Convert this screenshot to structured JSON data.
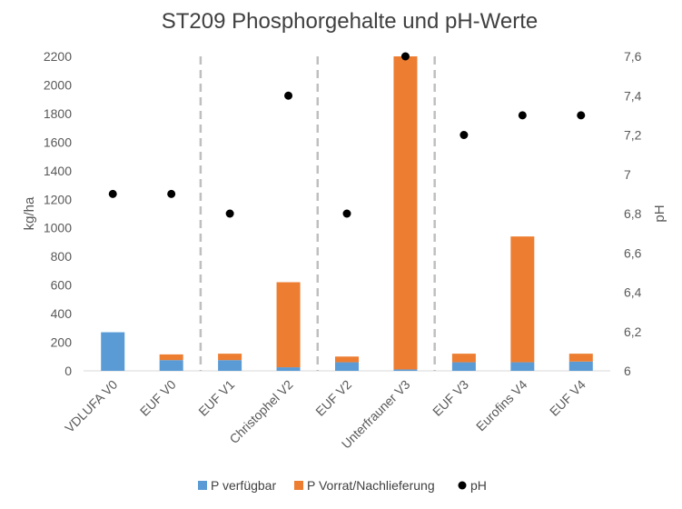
{
  "chart_data": {
    "type": "bar",
    "title": "ST209 Phosphorgehalte und pH-Werte",
    "ylabel": "kg/ha",
    "y2label": "pH",
    "ylim": [
      0,
      2200
    ],
    "y2lim": [
      6,
      7.6
    ],
    "yticks": [
      "0",
      "200",
      "400",
      "600",
      "800",
      "1000",
      "1200",
      "1400",
      "1600",
      "1800",
      "2000",
      "2200"
    ],
    "y2ticks": [
      "6",
      "6,2",
      "6,4",
      "6,6",
      "6,8",
      "7",
      "7,2",
      "7,4",
      "7,6"
    ],
    "categories": [
      "VDLUFA V0",
      "EUF V0",
      "EUF V1",
      "Christophel V2",
      "EUF V2",
      "Unterfrauner V3",
      "EUF V3",
      "Eurofins V4",
      "EUF V4"
    ],
    "stacked": true,
    "group_separators_after": [
      1,
      3,
      5
    ],
    "series": [
      {
        "name": "P verfügbar",
        "kind": "bar",
        "axis": "left",
        "color": "#5B9BD5",
        "values": [
          270,
          75,
          75,
          25,
          60,
          10,
          60,
          60,
          65
        ]
      },
      {
        "name": "P Vorrat/Nachlieferung",
        "kind": "bar",
        "axis": "left",
        "color": "#ED7D31",
        "values": [
          0,
          40,
          45,
          595,
          40,
          2190,
          60,
          880,
          55
        ]
      },
      {
        "name": "pH",
        "kind": "scatter",
        "axis": "right",
        "color": "#000000",
        "values": [
          6.9,
          6.9,
          6.8,
          7.4,
          6.8,
          7.6,
          7.2,
          7.3,
          7.3
        ]
      }
    ],
    "legend_position": "bottom"
  }
}
